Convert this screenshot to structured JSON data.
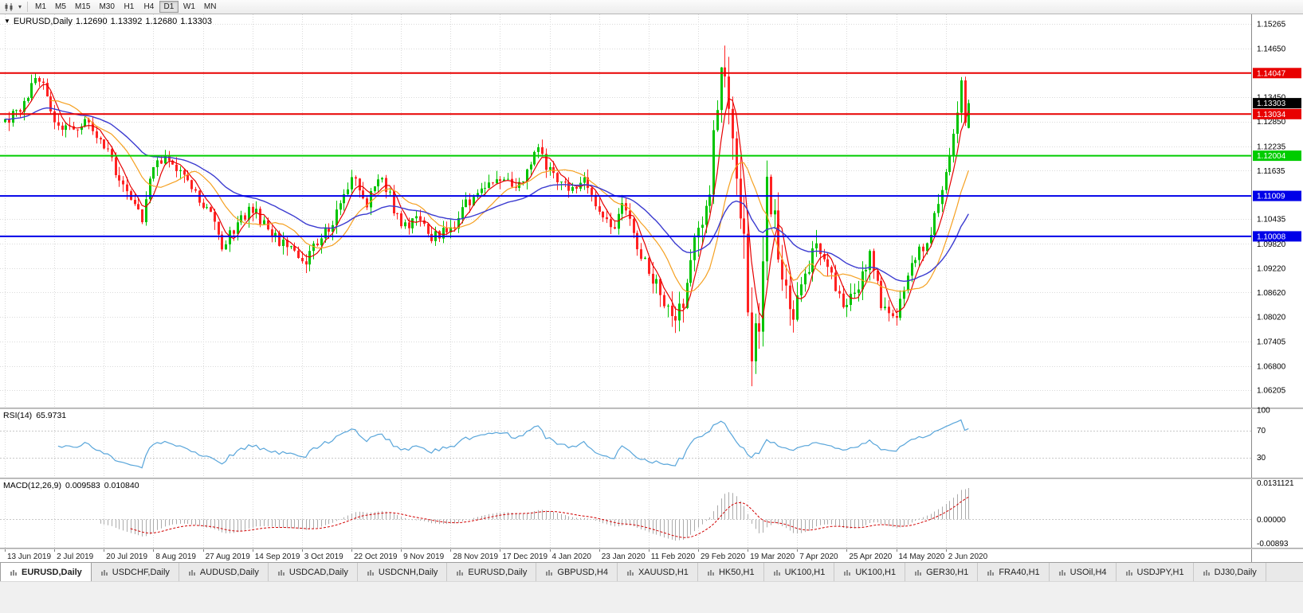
{
  "toolbar": {
    "timeframes": [
      "M1",
      "M5",
      "M15",
      "M30",
      "H1",
      "H4",
      "D1",
      "W1",
      "MN"
    ],
    "active_timeframe": "D1"
  },
  "chart": {
    "title": {
      "symbol_period": "EURUSD,Daily",
      "open": "1.12690",
      "high": "1.13392",
      "low": "1.12680",
      "close": "1.13303"
    }
  },
  "rsi": {
    "name": "RSI(14)",
    "value": "65.9731",
    "axis_labels": [
      "100",
      "70",
      "30"
    ],
    "axis_values": [
      100,
      70,
      30
    ],
    "level_values": [
      70,
      30
    ],
    "line_color": "#58a5da"
  },
  "macd": {
    "name": "MACD(12,26,9)",
    "main_value": "0.009583",
    "signal_value": "0.010840",
    "axis_labels": [
      "0.0131121",
      "0.00000",
      "-0.00893"
    ]
  },
  "tabs": {
    "active_index": 0,
    "items": [
      "EURUSD,Daily",
      "USDCHF,Daily",
      "AUDUSD,Daily",
      "USDCAD,Daily",
      "USDCNH,Daily",
      "EURUSD,Daily",
      "GBPUSD,H4",
      "XAUUSD,H1",
      "HK50,H1",
      "UK100,H1",
      "UK100,H1",
      "GER30,H1",
      "FRA40,H1",
      "USOil,H4",
      "USDJPY,H1",
      "DJ30,Daily"
    ]
  },
  "chart_data": {
    "type": "candlestick",
    "symbol": "EURUSD",
    "period": "Daily",
    "current_bar": {
      "open": 1.1269,
      "high": 1.13392,
      "low": 1.1268,
      "close": 1.13303
    },
    "bar_count": 254,
    "bars_per_x_label": 13,
    "x_labels": [
      "13 Jun 2019",
      "2 Jul 2019",
      "20 Jul 2019",
      "8 Aug 2019",
      "27 Aug 2019",
      "14 Sep 2019",
      "3 Oct 2019",
      "22 Oct 2019",
      "9 Nov 2019",
      "28 Nov 2019",
      "17 Dec 2019",
      "4 Jan 2020",
      "23 Jan 2020",
      "11 Feb 2020",
      "29 Feb 2020",
      "19 Mar 2020",
      "7 Apr 2020",
      "25 Apr 2020",
      "14 May 2020",
      "2 Jun 2020"
    ],
    "y_ticks": [
      "1.15265",
      "1.14650",
      "1.13450",
      "1.12850",
      "1.12235",
      "1.11635",
      "1.10435",
      "1.09820",
      "1.09220",
      "1.08620",
      "1.08020",
      "1.07405",
      "1.06800",
      "1.06205"
    ],
    "price_axis_range": [
      1.06205,
      1.15265
    ],
    "current_price_label": {
      "text": "1.13303",
      "bg": "#000000"
    },
    "horizontal_levels": [
      {
        "label": "1.14047",
        "price": 1.14047,
        "color": "#e80000"
      },
      {
        "label": "1.13034",
        "price": 1.13034,
        "color": "#e80000"
      },
      {
        "label": "1.12004",
        "price": 1.12004,
        "color": "#00cc00"
      },
      {
        "label": "1.11009",
        "price": 1.11009,
        "color": "#0000e8"
      },
      {
        "label": "1.10008",
        "price": 1.10008,
        "color": "#0000e8"
      }
    ],
    "moving_averages": [
      {
        "period": 5,
        "method": "sma",
        "color": "#e60000"
      },
      {
        "period": 13,
        "method": "sma",
        "color": "#f5a020"
      },
      {
        "period": 34,
        "method": "ema",
        "color": "#3b3bd0"
      }
    ],
    "candle_colors": {
      "up": "#00c400",
      "down": "#ff2222"
    },
    "close_anchors": [
      [
        0,
        1.1277
      ],
      [
        4,
        1.132
      ],
      [
        8,
        1.1392
      ],
      [
        10,
        1.1368
      ],
      [
        13,
        1.1285
      ],
      [
        17,
        1.1268
      ],
      [
        22,
        1.1282
      ],
      [
        26,
        1.1222
      ],
      [
        30,
        1.1146
      ],
      [
        34,
        1.1077
      ],
      [
        36,
        1.104
      ],
      [
        39,
        1.118
      ],
      [
        42,
        1.1202
      ],
      [
        46,
        1.1168
      ],
      [
        50,
        1.11
      ],
      [
        54,
        1.1062
      ],
      [
        57,
        1.0972
      ],
      [
        61,
        1.1032
      ],
      [
        65,
        1.1073
      ],
      [
        69,
        1.1017
      ],
      [
        73,
        1.0982
      ],
      [
        78,
        1.0932
      ],
      [
        82,
        1.0982
      ],
      [
        86,
        1.1042
      ],
      [
        91,
        1.115
      ],
      [
        95,
        1.1082
      ],
      [
        99,
        1.1152
      ],
      [
        104,
        1.1018
      ],
      [
        108,
        1.1052
      ],
      [
        112,
        1.1002
      ],
      [
        117,
        1.1018
      ],
      [
        121,
        1.1082
      ],
      [
        126,
        1.1132
      ],
      [
        130,
        1.1152
      ],
      [
        134,
        1.1112
      ],
      [
        140,
        1.1212
      ],
      [
        143,
        1.1162
      ],
      [
        148,
        1.1122
      ],
      [
        152,
        1.1136
      ],
      [
        156,
        1.1055
      ],
      [
        160,
        1.1022
      ],
      [
        162,
        1.1093
      ],
      [
        166,
        1.0982
      ],
      [
        169,
        1.0917
      ],
      [
        173,
        1.0842
      ],
      [
        176,
        1.0786
      ],
      [
        179,
        1.0882
      ],
      [
        182,
        1.1026
      ],
      [
        185,
        1.1135
      ],
      [
        188,
        1.1446
      ],
      [
        190,
        1.1282
      ],
      [
        192,
        1.1184
      ],
      [
        194,
        1.0995
      ],
      [
        196,
        1.0692
      ],
      [
        198,
        1.0802
      ],
      [
        200,
        1.114
      ],
      [
        202,
        1.1031
      ],
      [
        205,
        1.0862
      ],
      [
        207,
        1.0791
      ],
      [
        210,
        1.0902
      ],
      [
        213,
        1.0982
      ],
      [
        216,
        1.0912
      ],
      [
        221,
        1.0822
      ],
      [
        224,
        1.0882
      ],
      [
        227,
        1.0955
      ],
      [
        230,
        1.0834
      ],
      [
        234,
        1.0806
      ],
      [
        238,
        1.0949
      ],
      [
        242,
        1.0984
      ],
      [
        246,
        1.1134
      ],
      [
        250,
        1.1291
      ],
      [
        251,
        1.139
      ],
      [
        252,
        1.1269
      ],
      [
        253,
        1.13303
      ]
    ],
    "volatility_anchors": [
      [
        0,
        1
      ],
      [
        165,
        1
      ],
      [
        172,
        1.5
      ],
      [
        180,
        2
      ],
      [
        186,
        2.6
      ],
      [
        192,
        3
      ],
      [
        198,
        3
      ],
      [
        203,
        2.3
      ],
      [
        209,
        1.7
      ],
      [
        218,
        1.3
      ],
      [
        240,
        1.1
      ],
      [
        249,
        1.4
      ],
      [
        253,
        1
      ]
    ],
    "rsi_period": 14,
    "macd_params": {
      "fast": 12,
      "slow": 26,
      "signal": 9
    },
    "macd_scale": {
      "max": 0.0131121,
      "min": -0.00893
    },
    "macd_colors": {
      "histogram": "#ababab",
      "signal": "#d20000"
    }
  }
}
